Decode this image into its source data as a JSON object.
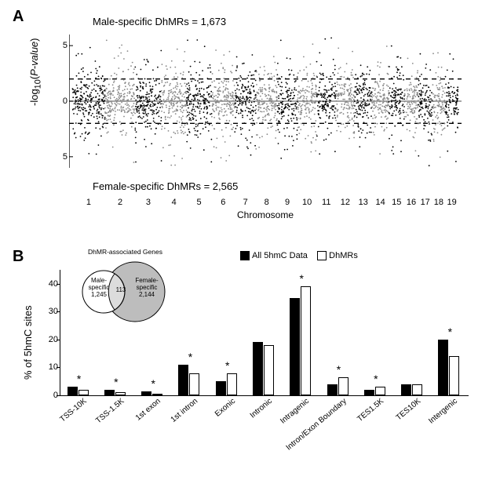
{
  "panelA": {
    "label": "A",
    "top_caption": "Male-specific DhMRs = 1,673",
    "bottom_caption": "Female-specific DhMRs = 2,565",
    "y_axis_label": "-log₁₀(P-value)",
    "x_axis_label": "Chromosome",
    "ylim": [
      -6,
      6
    ],
    "yticks": [
      5,
      0,
      5
    ],
    "ytick_vals": [
      5,
      0,
      -5
    ],
    "threshold_lines": [
      2,
      -2
    ],
    "chromosomes": [
      "1",
      "2",
      "3",
      "4",
      "5",
      "6",
      "7",
      "8",
      "9",
      "10",
      "11",
      "12",
      "13",
      "14",
      "15",
      "16",
      "17",
      "18",
      "19"
    ],
    "chrom_widths": [
      0.085,
      0.078,
      0.068,
      0.065,
      0.065,
      0.06,
      0.055,
      0.055,
      0.052,
      0.05,
      0.05,
      0.048,
      0.045,
      0.044,
      0.04,
      0.036,
      0.036,
      0.034,
      0.034
    ],
    "chrom_colors": [
      "#000000",
      "#888888"
    ],
    "points_per_chrom": 260,
    "point_radius": 0.9,
    "zero_line_color": "#888888",
    "dash_color": "#000000",
    "background": "#ffffff",
    "seed": 42
  },
  "panelB": {
    "label": "B",
    "y_axis_label": "% of 5hmC sites",
    "ylim": [
      0,
      45
    ],
    "yticks": [
      0,
      10,
      20,
      30,
      40
    ],
    "legend": {
      "filled": "All 5hmC Data",
      "open": "DhMRs"
    },
    "categories": [
      {
        "name": "TSS-10K",
        "all": 3.0,
        "dhmr": 2.0,
        "sig": true
      },
      {
        "name": "TSS-1.5K",
        "all": 2.0,
        "dhmr": 1.0,
        "sig": true
      },
      {
        "name": "1st exon",
        "all": 1.5,
        "dhmr": 0.5,
        "sig": true
      },
      {
        "name": "1st intron",
        "all": 11.0,
        "dhmr": 8.0,
        "sig": true
      },
      {
        "name": "Exonic",
        "all": 5.0,
        "dhmr": 8.0,
        "sig": true
      },
      {
        "name": "Intronic",
        "all": 19.0,
        "dhmr": 18.0,
        "sig": false
      },
      {
        "name": "Intragenic",
        "all": 35.0,
        "dhmr": 39.0,
        "sig": true
      },
      {
        "name": "Intron/Exon Boundary",
        "all": 4.0,
        "dhmr": 6.5,
        "sig": true
      },
      {
        "name": "TES1.5K",
        "all": 2.0,
        "dhmr": 3.0,
        "sig": true
      },
      {
        "name": "TES10K",
        "all": 4.0,
        "dhmr": 4.0,
        "sig": false
      },
      {
        "name": "Intergenic",
        "all": 20.0,
        "dhmr": 14.0,
        "sig": true
      }
    ],
    "bar_colors": {
      "filled": "#000000",
      "open_border": "#000000",
      "open_fill": "#ffffff"
    },
    "sig_marker": "*",
    "venn": {
      "title": "DhMR-associated Genes",
      "left": {
        "label": "Male-\nspecific",
        "count": "1,245",
        "fill": "#ffffff"
      },
      "right": {
        "label": "Female-\nspecific",
        "count": "2,144",
        "fill": "#bdbdbd"
      },
      "overlap": "113"
    }
  }
}
